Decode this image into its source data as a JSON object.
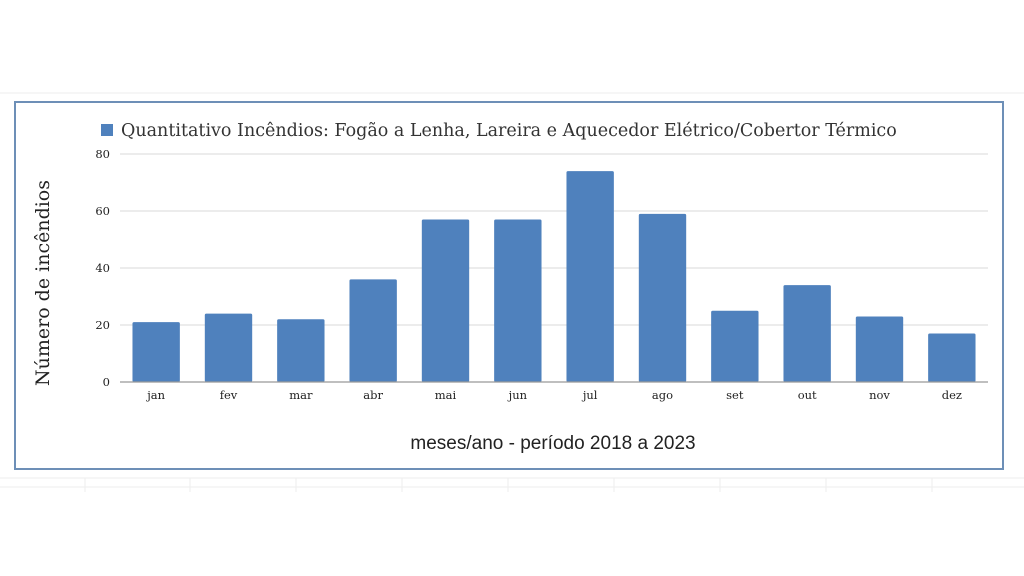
{
  "chart_data": {
    "type": "bar",
    "legend": "Quantitativo Incêndios: Fogão a Lenha, Lareira e Aquecedor Elétrico/Cobertor Térmico",
    "legend_position": "top",
    "categories": [
      "jan",
      "fev",
      "mar",
      "abr",
      "mai",
      "jun",
      "jul",
      "ago",
      "set",
      "out",
      "nov",
      "dez"
    ],
    "values": [
      21,
      24,
      22,
      36,
      57,
      57,
      74,
      59,
      25,
      34,
      23,
      17
    ],
    "xlabel": "meses/ano - período 2018 a 2023",
    "ylabel": "Número de incêndios",
    "ylim": [
      0,
      80
    ],
    "yticks": [
      "0",
      "20",
      "40",
      "60",
      "80"
    ],
    "grid": true,
    "bar_color": "#4f81bd",
    "grid_color": "#d9d9d9",
    "frame_color": "#6d8fb7"
  }
}
